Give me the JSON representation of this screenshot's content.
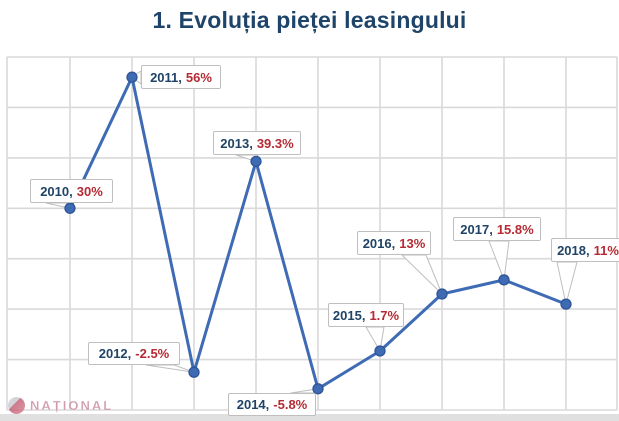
{
  "title": "1. Evoluția pieței leasingului",
  "watermark": {
    "brand": "NAȚIONAL"
  },
  "chart_data": {
    "type": "line",
    "title": "1. Evoluția pieței leasingului",
    "categories": [
      2010,
      2011,
      2012,
      2013,
      2014,
      2015,
      2016,
      2017,
      2018
    ],
    "values": [
      30,
      56,
      -2.5,
      39.3,
      -5.8,
      1.7,
      13,
      15.8,
      11
    ],
    "points": [
      {
        "year_label": "2010,",
        "value_label": "30%"
      },
      {
        "year_label": "2011,",
        "value_label": "56%"
      },
      {
        "year_label": "2012,",
        "value_label": "-2.5%"
      },
      {
        "year_label": "2013,",
        "value_label": "39.3%"
      },
      {
        "year_label": "2014,",
        "value_label": "-5.8%"
      },
      {
        "year_label": "2015,",
        "value_label": "1.7%"
      },
      {
        "year_label": "2016,",
        "value_label": "13%"
      },
      {
        "year_label": "2017,",
        "value_label": "15.8%"
      },
      {
        "year_label": "2018,",
        "value_label": "11%"
      }
    ],
    "xlabel": "",
    "ylabel": "",
    "ylim": [
      -10,
      60
    ],
    "grid_step": 10,
    "grid": true,
    "legend": "none",
    "data_labels": "callout",
    "colors": {
      "line": "#3E6BB4",
      "marker_fill": "#3E6BB4",
      "marker_stroke": "#2F5597",
      "title": "#1F4469",
      "year_text": "#1F4366",
      "value_text": "#B52A33",
      "gridline": "#D9D9D9",
      "callout_border": "#BFBFBF",
      "watermark": "#C27A90"
    }
  }
}
